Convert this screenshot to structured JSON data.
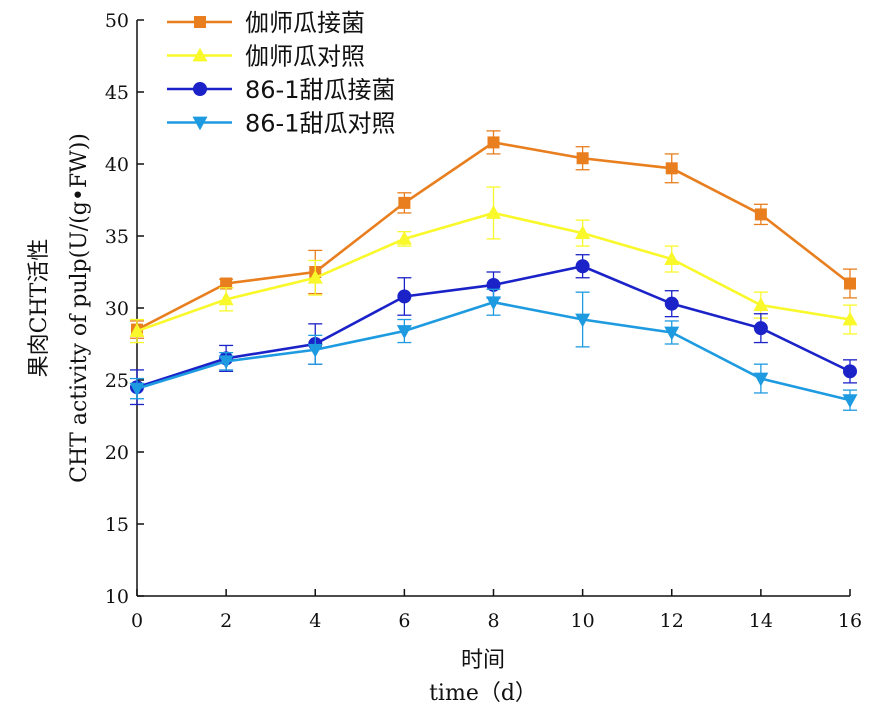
{
  "chart_data": {
    "type": "line",
    "x": [
      0,
      2,
      4,
      6,
      8,
      10,
      12,
      14,
      16
    ],
    "xticks": [
      "0",
      "2",
      "4",
      "6",
      "8",
      "10",
      "12",
      "14",
      "16"
    ],
    "yticks": [
      "10",
      "15",
      "20",
      "25",
      "30",
      "35",
      "40",
      "45",
      "50"
    ],
    "xlim": [
      0,
      16
    ],
    "ylim": [
      10,
      50
    ],
    "xlabel": "时间",
    "xlabel2": "time（d）",
    "ylabel": "果肉CHT活性",
    "ylabel2": "CHT activity of pulp(U/(g•FW))",
    "legend_position": "top-left",
    "grid": false,
    "series": [
      {
        "name": "伽师瓜接菌",
        "color": "#E87E1E",
        "marker": "square",
        "values": [
          28.5,
          31.7,
          32.5,
          37.3,
          41.5,
          40.4,
          39.7,
          36.5,
          31.7
        ],
        "errors": [
          0.6,
          0.3,
          1.5,
          0.7,
          0.8,
          0.8,
          1.0,
          0.7,
          1.0
        ]
      },
      {
        "name": "伽师瓜对照",
        "color": "#F8F82A",
        "marker": "triangle-up",
        "values": [
          28.4,
          30.6,
          32.1,
          34.8,
          36.6,
          35.2,
          33.4,
          30.2,
          29.2
        ],
        "errors": [
          0.8,
          0.8,
          1.2,
          0.5,
          1.8,
          0.9,
          0.9,
          0.9,
          1.0
        ]
      },
      {
        "name": "86-1甜瓜接菌",
        "color": "#1A22C8",
        "marker": "circle",
        "values": [
          24.5,
          26.5,
          27.5,
          30.8,
          31.6,
          32.9,
          30.3,
          28.6,
          25.6
        ],
        "errors": [
          1.2,
          0.9,
          1.4,
          1.3,
          0.9,
          0.8,
          0.9,
          1.0,
          0.8
        ]
      },
      {
        "name": "86-1甜瓜对照",
        "color": "#1E9BE0",
        "marker": "triangle-down",
        "values": [
          24.4,
          26.3,
          27.1,
          28.4,
          30.4,
          29.2,
          28.3,
          25.1,
          23.6
        ],
        "errors": [
          0.7,
          0.6,
          1.0,
          0.8,
          0.9,
          1.9,
          0.8,
          1.0,
          0.7
        ]
      }
    ]
  }
}
